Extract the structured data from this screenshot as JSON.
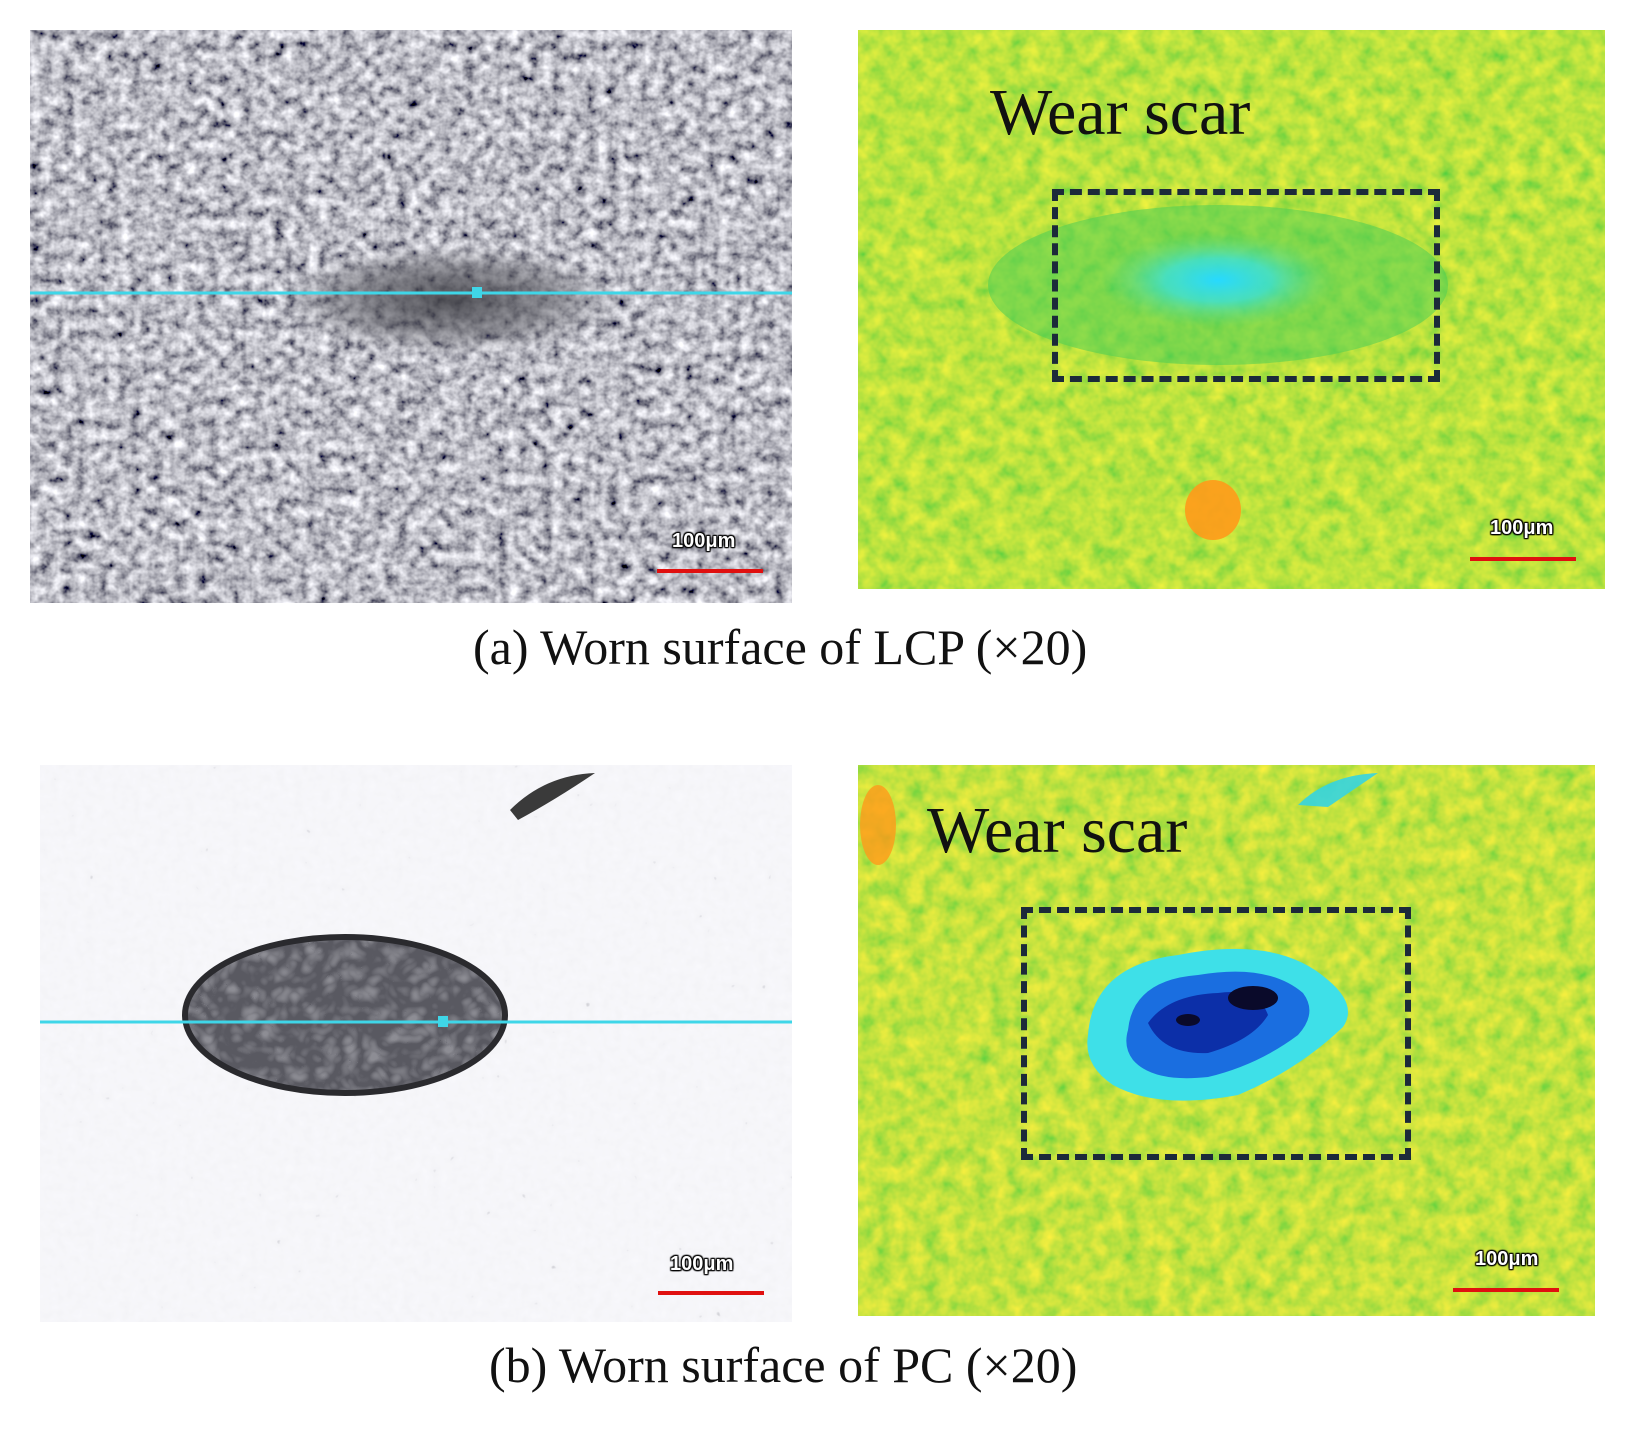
{
  "panels": {
    "lcp_optical": {
      "scale_label": "100μm"
    },
    "lcp_profile": {
      "label": "Wear scar",
      "scale_label": "100μm"
    },
    "pc_optical": {
      "scale_label": "100μm"
    },
    "pc_profile": {
      "label": "Wear scar",
      "scale_label": "100μm"
    }
  },
  "captions": {
    "a": "(a) Worn surface of LCP (×20)",
    "b": "(b) Worn surface of PC (×20)"
  },
  "colors": {
    "measurement_line": "#3fd6e8",
    "scale_bar": "#e01010",
    "wear_box": "#1c2a3a",
    "profile_base": "#7ed321"
  }
}
